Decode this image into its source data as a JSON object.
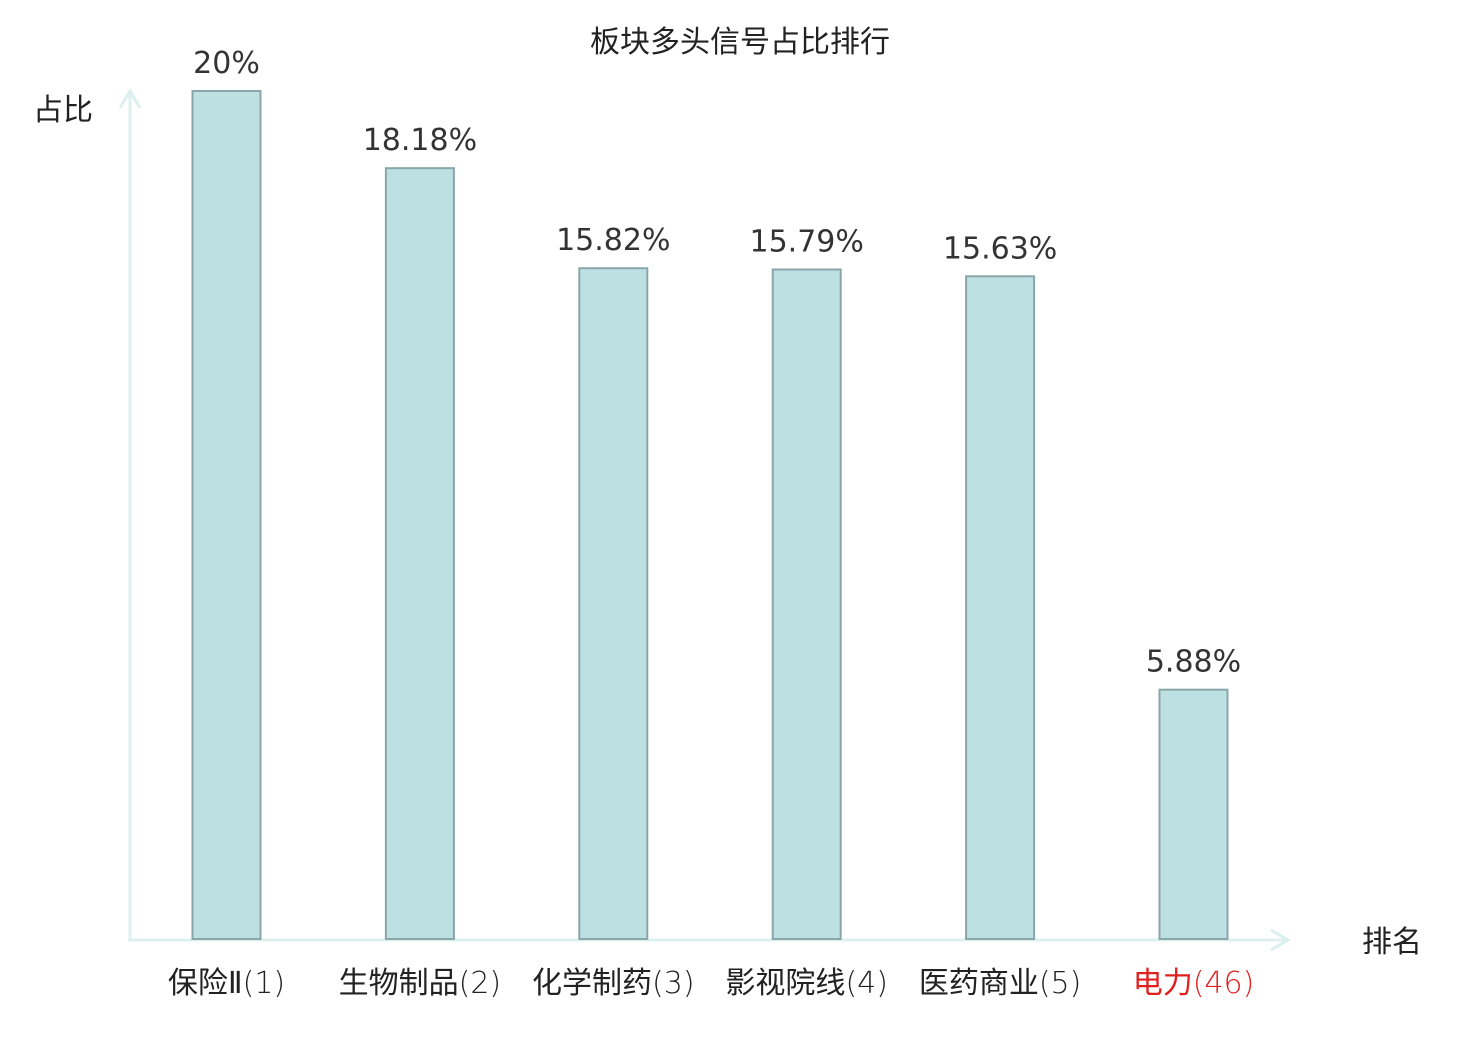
{
  "chart_data": {
    "type": "bar",
    "title": "板块多头信号占比排行",
    "ylabel": "占比",
    "xlabel": "排名",
    "categories": [
      "保险Ⅱ",
      "生物制品",
      "化学制药",
      "影视院线",
      "医药商业",
      "电力"
    ],
    "ranks": [
      "(1)",
      "(2)",
      "(3)",
      "(4)",
      "(5)",
      "(46)"
    ],
    "values": [
      20,
      18.18,
      15.82,
      15.79,
      15.63,
      5.88
    ],
    "value_labels": [
      "20%",
      "18.18%",
      "15.82%",
      "15.79%",
      "15.63%",
      "5.88%"
    ],
    "highlight_index": 5,
    "ylim": [
      0,
      20
    ],
    "grid": false,
    "legend": "none"
  },
  "colors": {
    "bar_fill": "#bde0e3",
    "bar_stroke": "#8aa6a8",
    "axis": "#dcf0ef",
    "text": "#222222",
    "highlight_text": "#e0201f"
  }
}
